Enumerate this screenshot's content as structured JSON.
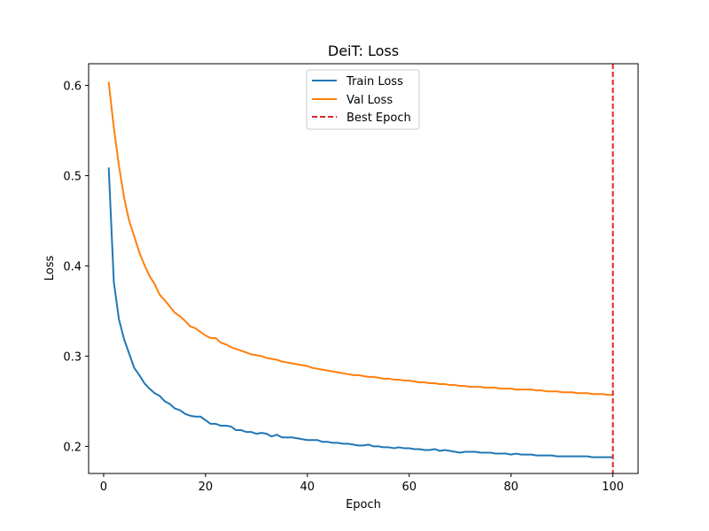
{
  "chart_data": {
    "type": "line",
    "title": "DeiT: Loss",
    "xlabel": "Epoch",
    "ylabel": "Loss",
    "xlim": [
      -2.95,
      104.95
    ],
    "ylim": [
      0.17,
      0.624
    ],
    "x_ticks": [
      0,
      20,
      40,
      60,
      80,
      100
    ],
    "y_ticks": [
      0.2,
      0.3,
      0.4,
      0.5,
      0.6
    ],
    "y_tick_labels": [
      "0.2",
      "0.3",
      "0.4",
      "0.5",
      "0.6"
    ],
    "grid": false,
    "legend_position": "top-center",
    "x": [
      1,
      2,
      3,
      4,
      5,
      6,
      7,
      8,
      9,
      10,
      11,
      12,
      13,
      14,
      15,
      16,
      17,
      18,
      19,
      20,
      21,
      22,
      23,
      24,
      25,
      26,
      27,
      28,
      29,
      30,
      31,
      32,
      33,
      34,
      35,
      36,
      37,
      38,
      39,
      40,
      41,
      42,
      43,
      44,
      45,
      46,
      47,
      48,
      49,
      50,
      51,
      52,
      53,
      54,
      55,
      56,
      57,
      58,
      59,
      60,
      61,
      62,
      63,
      64,
      65,
      66,
      67,
      68,
      69,
      70,
      71,
      72,
      73,
      74,
      75,
      76,
      77,
      78,
      79,
      80,
      81,
      82,
      83,
      84,
      85,
      86,
      87,
      88,
      89,
      90,
      91,
      92,
      93,
      94,
      95,
      96,
      97,
      98,
      99,
      100
    ],
    "series": [
      {
        "name": "Train Loss",
        "color": "#1f77b4",
        "style": "solid",
        "values": [
          0.508,
          0.382,
          0.341,
          0.319,
          0.303,
          0.287,
          0.279,
          0.27,
          0.264,
          0.259,
          0.256,
          0.25,
          0.247,
          0.242,
          0.24,
          0.236,
          0.234,
          0.233,
          0.233,
          0.229,
          0.225,
          0.225,
          0.223,
          0.223,
          0.222,
          0.218,
          0.218,
          0.216,
          0.216,
          0.214,
          0.215,
          0.214,
          0.211,
          0.213,
          0.21,
          0.21,
          0.21,
          0.209,
          0.208,
          0.207,
          0.207,
          0.207,
          0.205,
          0.205,
          0.204,
          0.204,
          0.203,
          0.203,
          0.202,
          0.201,
          0.201,
          0.202,
          0.2,
          0.2,
          0.199,
          0.199,
          0.198,
          0.199,
          0.198,
          0.198,
          0.197,
          0.197,
          0.196,
          0.196,
          0.197,
          0.195,
          0.196,
          0.195,
          0.194,
          0.193,
          0.194,
          0.194,
          0.194,
          0.193,
          0.193,
          0.193,
          0.192,
          0.192,
          0.192,
          0.191,
          0.192,
          0.191,
          0.191,
          0.191,
          0.19,
          0.19,
          0.19,
          0.19,
          0.189,
          0.189,
          0.189,
          0.189,
          0.189,
          0.189,
          0.189,
          0.188,
          0.188,
          0.188,
          0.188,
          0.188
        ]
      },
      {
        "name": "Val Loss",
        "color": "#ff7f0e",
        "style": "solid",
        "values": [
          0.603,
          0.553,
          0.511,
          0.476,
          0.45,
          0.433,
          0.415,
          0.401,
          0.389,
          0.38,
          0.368,
          0.362,
          0.355,
          0.348,
          0.344,
          0.339,
          0.333,
          0.331,
          0.327,
          0.323,
          0.32,
          0.32,
          0.315,
          0.313,
          0.31,
          0.308,
          0.306,
          0.304,
          0.302,
          0.301,
          0.3,
          0.298,
          0.297,
          0.296,
          0.294,
          0.293,
          0.292,
          0.291,
          0.29,
          0.289,
          0.287,
          0.286,
          0.285,
          0.284,
          0.283,
          0.282,
          0.281,
          0.28,
          0.279,
          0.279,
          0.278,
          0.277,
          0.277,
          0.276,
          0.275,
          0.275,
          0.274,
          0.274,
          0.273,
          0.273,
          0.272,
          0.271,
          0.271,
          0.27,
          0.27,
          0.269,
          0.269,
          0.268,
          0.268,
          0.267,
          0.267,
          0.266,
          0.266,
          0.266,
          0.265,
          0.265,
          0.265,
          0.264,
          0.264,
          0.264,
          0.263,
          0.263,
          0.263,
          0.263,
          0.262,
          0.262,
          0.261,
          0.261,
          0.261,
          0.26,
          0.26,
          0.26,
          0.259,
          0.259,
          0.259,
          0.258,
          0.258,
          0.258,
          0.257,
          0.257
        ]
      }
    ],
    "reference_lines": [
      {
        "name": "Best Epoch",
        "orientation": "vertical",
        "x": 100,
        "color": "#d62728",
        "style": "dashed"
      }
    ]
  }
}
